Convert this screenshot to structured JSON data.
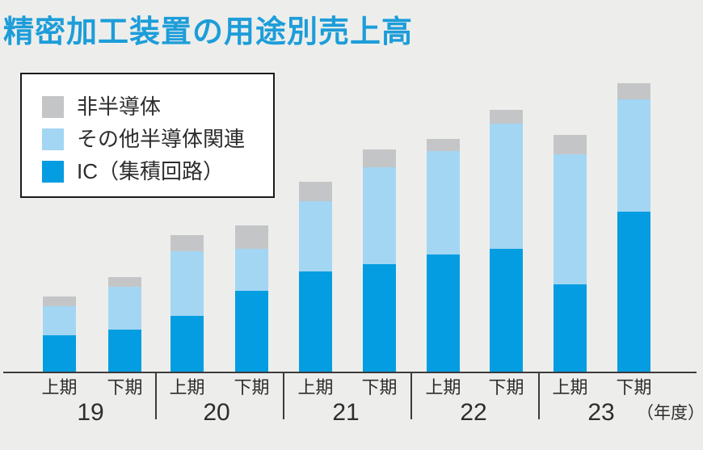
{
  "title": "精密加工装置の用途別売上高",
  "legend": {
    "items": [
      {
        "label": "非半導体",
        "color": "#C4C5C6"
      },
      {
        "label": "その他半導体関連",
        "color": "#A3D6F3"
      },
      {
        "label": "IC（集積回路）",
        "color": "#049DE1"
      }
    ]
  },
  "x_axis": {
    "half_labels": [
      "上期",
      "下期"
    ],
    "years": [
      "19",
      "20",
      "21",
      "22",
      "23"
    ],
    "unit_note": "（年度）"
  },
  "chart_data": {
    "type": "bar",
    "variant": "stacked",
    "title": "精密加工装置の用途別売上高",
    "categories": [
      "19上期",
      "19下期",
      "20上期",
      "20下期",
      "21上期",
      "21下期",
      "22上期",
      "22下期",
      "23上期",
      "23下期"
    ],
    "series": [
      {
        "name": "IC（集積回路）",
        "color": "#049DE1",
        "values": [
          46,
          53,
          70,
          101,
          125,
          134,
          146,
          153,
          109,
          199
        ]
      },
      {
        "name": "その他半導体関連",
        "color": "#A3D6F3",
        "values": [
          36,
          53,
          80,
          52,
          87,
          120,
          128,
          155,
          161,
          139
        ]
      },
      {
        "name": "非半導体",
        "color": "#C4C5C6",
        "values": [
          12,
          12,
          20,
          29,
          24,
          22,
          15,
          17,
          24,
          20
        ]
      }
    ],
    "stack_order_bottom_to_top": [
      "IC（集積回路）",
      "その他半導体関連",
      "非半導体"
    ],
    "values_unit": "relative height units (chart displays no numeric value axis)",
    "xlabel": "年度",
    "ylabel": "",
    "grid": false,
    "legend_position": "top-left"
  }
}
